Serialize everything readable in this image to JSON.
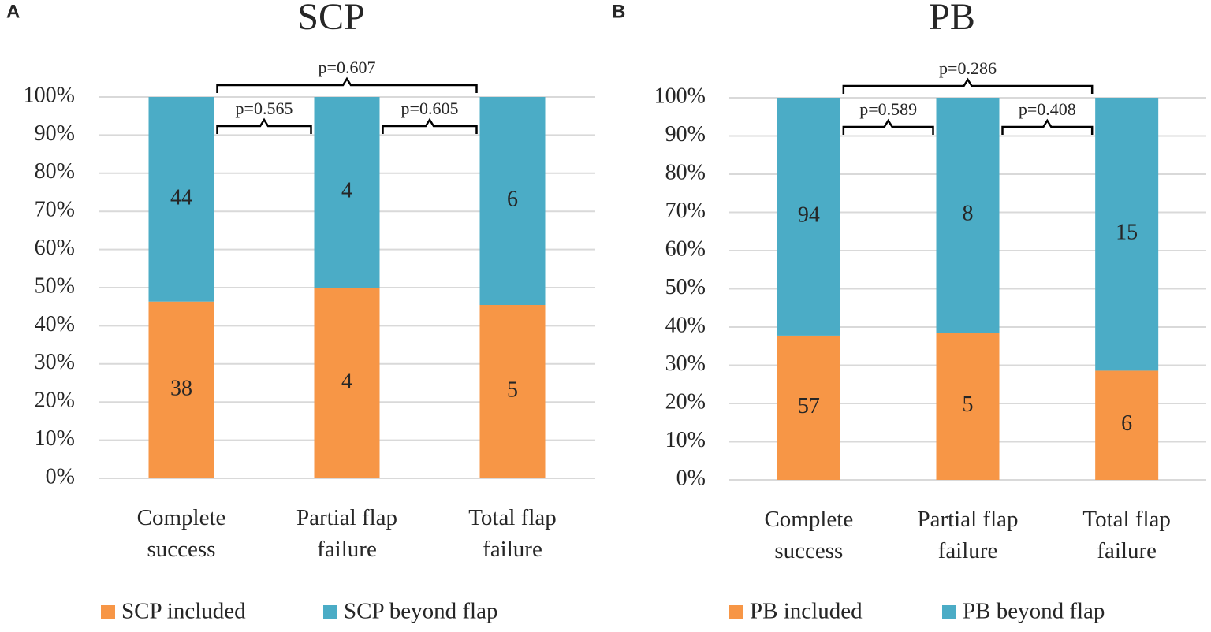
{
  "chart_data": [
    {
      "type": "bar",
      "stack": "percent",
      "panel": "A",
      "title": "SCP",
      "categories": [
        "Complete success",
        "Partial flap failure",
        "Total flap failure"
      ],
      "series": [
        {
          "name": "SCP included",
          "color": "#f79646",
          "values": [
            38,
            4,
            5
          ]
        },
        {
          "name": "SCP beyond flap",
          "color": "#4bacc6",
          "values": [
            44,
            4,
            6
          ]
        }
      ],
      "ylim": [
        0,
        100
      ],
      "yticks": [
        {
          "value": 0,
          "label": "0%"
        },
        {
          "value": 10,
          "label": "10%"
        },
        {
          "value": 20,
          "label": "20%"
        },
        {
          "value": 30,
          "label": "30%"
        },
        {
          "value": 40,
          "label": "40%"
        },
        {
          "value": 50,
          "label": "50%"
        },
        {
          "value": 60,
          "label": "60%"
        },
        {
          "value": 70,
          "label": "70%"
        },
        {
          "value": 80,
          "label": "80%"
        },
        {
          "value": 90,
          "label": "90%"
        },
        {
          "value": 100,
          "label": "100%"
        }
      ],
      "grid": true,
      "legend": "bottom",
      "annotations": [
        {
          "text": "p=0.607",
          "from": 0,
          "to": 2
        },
        {
          "text": "p=0.565",
          "from": 0,
          "to": 1
        },
        {
          "text": "p=0.605",
          "from": 1,
          "to": 2
        }
      ]
    },
    {
      "type": "bar",
      "stack": "percent",
      "panel": "B",
      "title": "PB",
      "categories": [
        "Complete success",
        "Partial flap failure",
        "Total flap failure"
      ],
      "series": [
        {
          "name": "PB included",
          "color": "#f79646",
          "values": [
            57,
            5,
            6
          ]
        },
        {
          "name": "PB beyond flap",
          "color": "#4bacc6",
          "values": [
            94,
            8,
            15
          ]
        }
      ],
      "ylim": [
        0,
        100
      ],
      "yticks": [
        {
          "value": 0,
          "label": "0%"
        },
        {
          "value": 10,
          "label": "10%"
        },
        {
          "value": 20,
          "label": "20%"
        },
        {
          "value": 30,
          "label": "30%"
        },
        {
          "value": 40,
          "label": "40%"
        },
        {
          "value": 50,
          "label": "50%"
        },
        {
          "value": 60,
          "label": "60%"
        },
        {
          "value": 70,
          "label": "70%"
        },
        {
          "value": 80,
          "label": "80%"
        },
        {
          "value": 90,
          "label": "90%"
        },
        {
          "value": 100,
          "label": "100%"
        }
      ],
      "grid": true,
      "legend": "bottom",
      "annotations": [
        {
          "text": "p=0.286",
          "from": 0,
          "to": 2
        },
        {
          "text": "p=0.589",
          "from": 0,
          "to": 1
        },
        {
          "text": "p=0.408",
          "from": 1,
          "to": 2
        }
      ]
    }
  ]
}
